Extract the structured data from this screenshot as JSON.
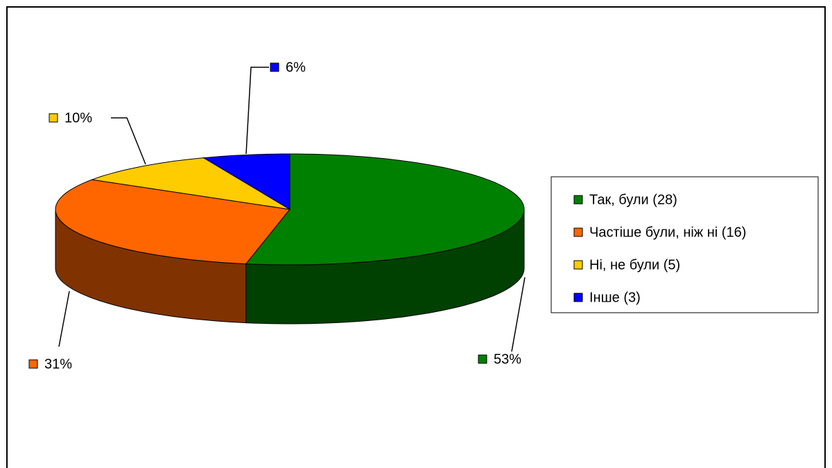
{
  "chart_data": {
    "type": "pie3d",
    "categories": [
      "Так, були (28)",
      "Частіше були, ніж ні (16)",
      "Ні, не були (5)",
      "Інше (3)"
    ],
    "values": [
      53,
      31,
      10,
      6
    ],
    "value_labels": [
      "53%",
      "31%",
      "10%",
      "6%"
    ],
    "colors": [
      "#008000",
      "#ff6600",
      "#ffcc00",
      "#0000ff"
    ],
    "legend": "right"
  }
}
